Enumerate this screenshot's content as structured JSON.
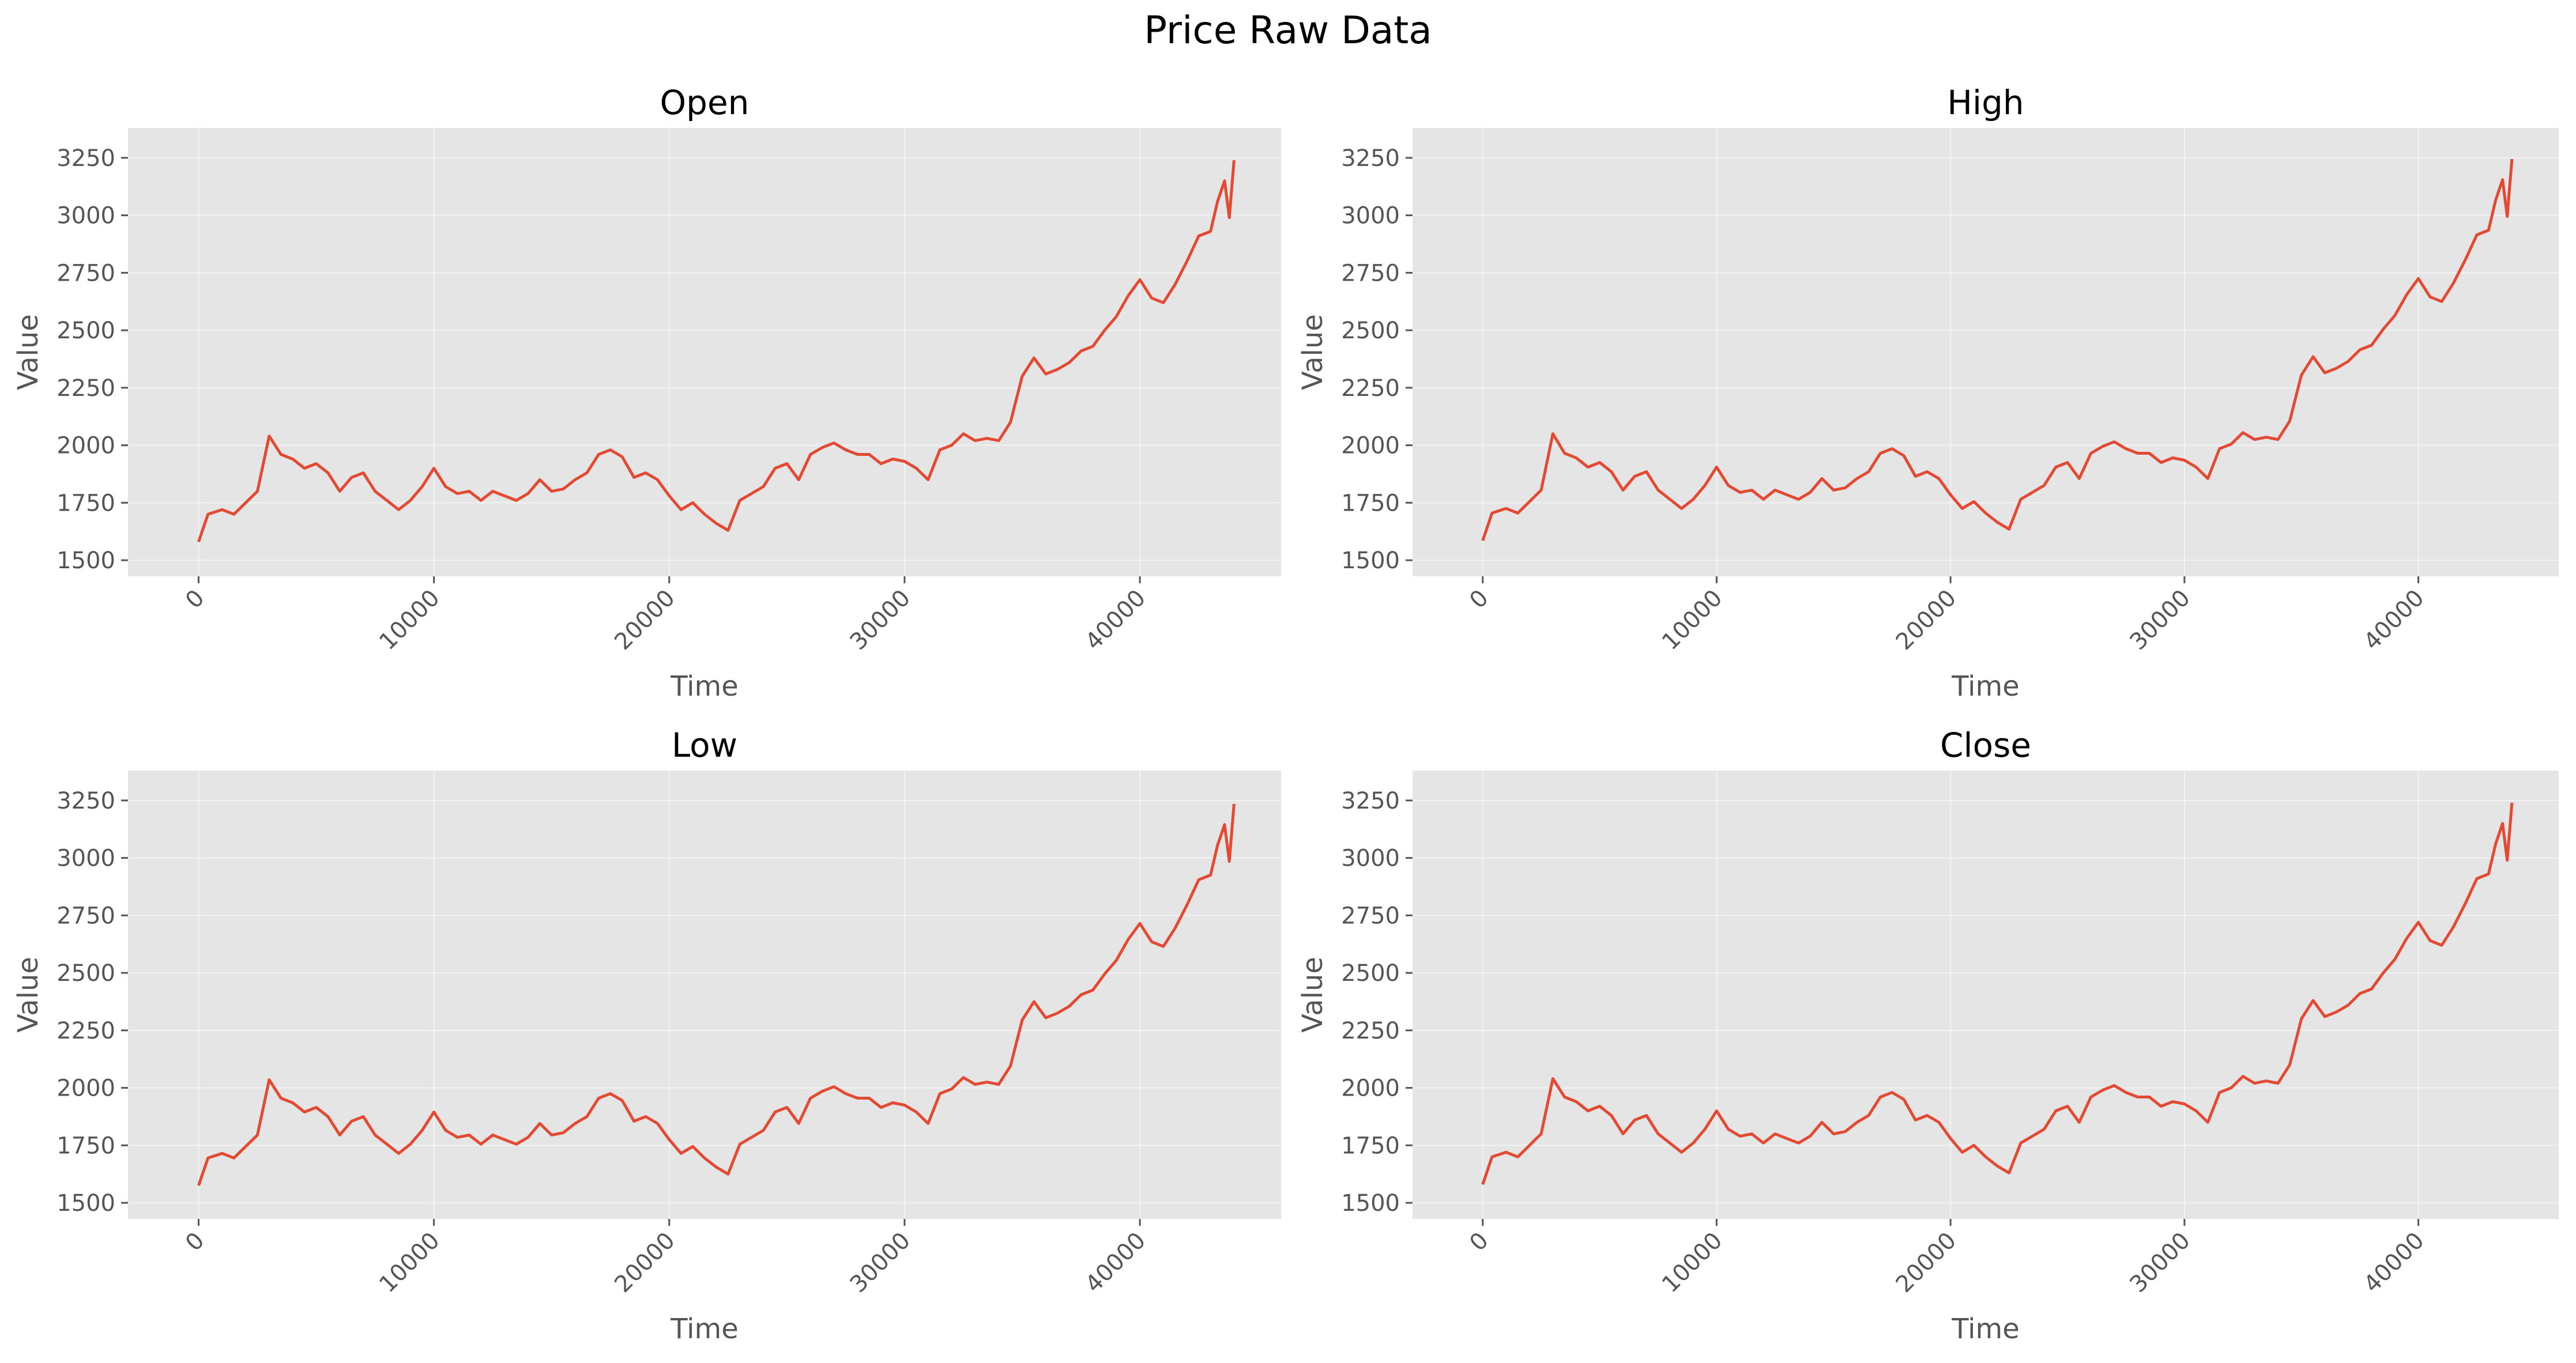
{
  "figure": {
    "title": "Price Raw Data"
  },
  "style": {
    "plot_background": "#e5e5e5",
    "grid_color": "#ffffff",
    "line_color": "#e24a33",
    "tick_color": "#555555"
  },
  "chart_data": [
    {
      "type": "line",
      "title": "Open",
      "xlabel": "Time",
      "ylabel": "Value",
      "xlim": [
        -3000,
        46000
      ],
      "ylim": [
        1430,
        3380
      ],
      "xticks": [
        0,
        10000,
        20000,
        30000,
        40000
      ],
      "xtick_labels": [
        "0",
        "10000",
        "20000",
        "30000",
        "40000"
      ],
      "yticks": [
        1500,
        1750,
        2000,
        2250,
        2500,
        2750,
        3000,
        3250
      ],
      "ytick_labels": [
        "1500",
        "1750",
        "2000",
        "2250",
        "2500",
        "2750",
        "3000",
        "3250"
      ],
      "grid": true,
      "series": [
        {
          "x": [
            0,
            400,
            1000,
            1500,
            2000,
            2500,
            3000,
            3500,
            4000,
            4500,
            5000,
            5500,
            6000,
            6500,
            7000,
            7500,
            8000,
            8500,
            9000,
            9500,
            10000,
            10500,
            11000,
            11500,
            12000,
            12500,
            13000,
            13500,
            14000,
            14500,
            15000,
            15500,
            16000,
            16500,
            17000,
            17500,
            18000,
            18500,
            19000,
            19500,
            20000,
            20500,
            21000,
            21500,
            22000,
            22500,
            23000,
            23500,
            24000,
            24500,
            25000,
            25500,
            26000,
            26500,
            27000,
            27500,
            28000,
            28500,
            29000,
            29500,
            30000,
            30500,
            31000,
            31500,
            32000,
            32500,
            33000,
            33500,
            34000,
            34500,
            35000,
            35500,
            36000,
            36500,
            37000,
            37500,
            38000,
            38500,
            39000,
            39500,
            40000,
            40500,
            41000,
            41500,
            42000,
            42500,
            43000,
            43300,
            43600,
            43800,
            44000
          ],
          "y": [
            1580,
            1700,
            1720,
            1700,
            1750,
            1800,
            2040,
            1960,
            1940,
            1900,
            1920,
            1880,
            1800,
            1860,
            1880,
            1800,
            1760,
            1720,
            1760,
            1820,
            1900,
            1820,
            1790,
            1800,
            1760,
            1800,
            1780,
            1760,
            1790,
            1850,
            1800,
            1810,
            1850,
            1880,
            1960,
            1980,
            1950,
            1860,
            1880,
            1850,
            1780,
            1720,
            1750,
            1700,
            1660,
            1630,
            1760,
            1790,
            1820,
            1900,
            1920,
            1850,
            1960,
            1990,
            2010,
            1980,
            1960,
            1960,
            1920,
            1940,
            1930,
            1900,
            1850,
            1980,
            2000,
            2050,
            2020,
            2030,
            2020,
            2100,
            2300,
            2380,
            2310,
            2330,
            2360,
            2410,
            2430,
            2500,
            2560,
            2650,
            2720,
            2640,
            2620,
            2700,
            2800,
            2910,
            2930,
            3060,
            3150,
            2990,
            3240
          ]
        }
      ]
    },
    {
      "type": "line",
      "title": "High",
      "xlabel": "Time",
      "ylabel": "Value",
      "xlim": [
        -3000,
        46000
      ],
      "ylim": [
        1430,
        3380
      ],
      "xticks": [
        0,
        10000,
        20000,
        30000,
        40000
      ],
      "xtick_labels": [
        "0",
        "10000",
        "20000",
        "30000",
        "40000"
      ],
      "yticks": [
        1500,
        1750,
        2000,
        2250,
        2500,
        2750,
        3000,
        3250
      ],
      "ytick_labels": [
        "1500",
        "1750",
        "2000",
        "2250",
        "2500",
        "2750",
        "3000",
        "3250"
      ],
      "grid": true,
      "series": [
        {
          "x": [
            0,
            400,
            1000,
            1500,
            2000,
            2500,
            3000,
            3500,
            4000,
            4500,
            5000,
            5500,
            6000,
            6500,
            7000,
            7500,
            8000,
            8500,
            9000,
            9500,
            10000,
            10500,
            11000,
            11500,
            12000,
            12500,
            13000,
            13500,
            14000,
            14500,
            15000,
            15500,
            16000,
            16500,
            17000,
            17500,
            18000,
            18500,
            19000,
            19500,
            20000,
            20500,
            21000,
            21500,
            22000,
            22500,
            23000,
            23500,
            24000,
            24500,
            25000,
            25500,
            26000,
            26500,
            27000,
            27500,
            28000,
            28500,
            29000,
            29500,
            30000,
            30500,
            31000,
            31500,
            32000,
            32500,
            33000,
            33500,
            34000,
            34500,
            35000,
            35500,
            36000,
            36500,
            37000,
            37500,
            38000,
            38500,
            39000,
            39500,
            40000,
            40500,
            41000,
            41500,
            42000,
            42500,
            43000,
            43300,
            43600,
            43800,
            44000
          ],
          "y": [
            1585,
            1705,
            1725,
            1705,
            1755,
            1805,
            2050,
            1965,
            1945,
            1905,
            1925,
            1885,
            1805,
            1865,
            1885,
            1805,
            1765,
            1725,
            1765,
            1825,
            1905,
            1825,
            1795,
            1805,
            1765,
            1805,
            1785,
            1765,
            1795,
            1855,
            1805,
            1815,
            1855,
            1885,
            1965,
            1985,
            1955,
            1865,
            1885,
            1855,
            1785,
            1725,
            1755,
            1705,
            1665,
            1635,
            1765,
            1795,
            1825,
            1905,
            1925,
            1855,
            1965,
            1995,
            2015,
            1985,
            1965,
            1965,
            1925,
            1945,
            1935,
            1905,
            1855,
            1985,
            2005,
            2055,
            2025,
            2035,
            2025,
            2105,
            2305,
            2385,
            2315,
            2335,
            2365,
            2415,
            2435,
            2505,
            2565,
            2655,
            2725,
            2645,
            2625,
            2705,
            2805,
            2915,
            2935,
            3065,
            3155,
            2995,
            3245
          ]
        }
      ]
    },
    {
      "type": "line",
      "title": "Low",
      "xlabel": "Time",
      "ylabel": "Value",
      "xlim": [
        -3000,
        46000
      ],
      "ylim": [
        1430,
        3380
      ],
      "xticks": [
        0,
        10000,
        20000,
        30000,
        40000
      ],
      "xtick_labels": [
        "0",
        "10000",
        "20000",
        "30000",
        "40000"
      ],
      "yticks": [
        1500,
        1750,
        2000,
        2250,
        2500,
        2750,
        3000,
        3250
      ],
      "ytick_labels": [
        "1500",
        "1750",
        "2000",
        "2250",
        "2500",
        "2750",
        "3000",
        "3250"
      ],
      "grid": true,
      "series": [
        {
          "x": [
            0,
            400,
            1000,
            1500,
            2000,
            2500,
            3000,
            3500,
            4000,
            4500,
            5000,
            5500,
            6000,
            6500,
            7000,
            7500,
            8000,
            8500,
            9000,
            9500,
            10000,
            10500,
            11000,
            11500,
            12000,
            12500,
            13000,
            13500,
            14000,
            14500,
            15000,
            15500,
            16000,
            16500,
            17000,
            17500,
            18000,
            18500,
            19000,
            19500,
            20000,
            20500,
            21000,
            21500,
            22000,
            22500,
            23000,
            23500,
            24000,
            24500,
            25000,
            25500,
            26000,
            26500,
            27000,
            27500,
            28000,
            28500,
            29000,
            29500,
            30000,
            30500,
            31000,
            31500,
            32000,
            32500,
            33000,
            33500,
            34000,
            34500,
            35000,
            35500,
            36000,
            36500,
            37000,
            37500,
            38000,
            38500,
            39000,
            39500,
            40000,
            40500,
            41000,
            41500,
            42000,
            42500,
            43000,
            43300,
            43600,
            43800,
            44000
          ],
          "y": [
            1575,
            1695,
            1715,
            1695,
            1745,
            1795,
            2035,
            1955,
            1935,
            1895,
            1915,
            1875,
            1795,
            1855,
            1875,
            1795,
            1755,
            1715,
            1755,
            1815,
            1895,
            1815,
            1785,
            1795,
            1755,
            1795,
            1775,
            1755,
            1785,
            1845,
            1795,
            1805,
            1845,
            1875,
            1955,
            1975,
            1945,
            1855,
            1875,
            1845,
            1775,
            1715,
            1745,
            1695,
            1655,
            1625,
            1755,
            1785,
            1815,
            1895,
            1915,
            1845,
            1955,
            1985,
            2005,
            1975,
            1955,
            1955,
            1915,
            1935,
            1925,
            1895,
            1845,
            1975,
            1995,
            2045,
            2015,
            2025,
            2015,
            2095,
            2295,
            2375,
            2305,
            2325,
            2355,
            2405,
            2425,
            2495,
            2555,
            2645,
            2715,
            2635,
            2615,
            2695,
            2795,
            2905,
            2925,
            3055,
            3145,
            2985,
            3235
          ]
        }
      ]
    },
    {
      "type": "line",
      "title": "Close",
      "xlabel": "Time",
      "ylabel": "Value",
      "xlim": [
        -3000,
        46000
      ],
      "ylim": [
        1430,
        3380
      ],
      "xticks": [
        0,
        10000,
        20000,
        30000,
        40000
      ],
      "xtick_labels": [
        "0",
        "10000",
        "20000",
        "30000",
        "40000"
      ],
      "yticks": [
        1500,
        1750,
        2000,
        2250,
        2500,
        2750,
        3000,
        3250
      ],
      "ytick_labels": [
        "1500",
        "1750",
        "2000",
        "2250",
        "2500",
        "2750",
        "3000",
        "3250"
      ],
      "grid": true,
      "series": [
        {
          "x": [
            0,
            400,
            1000,
            1500,
            2000,
            2500,
            3000,
            3500,
            4000,
            4500,
            5000,
            5500,
            6000,
            6500,
            7000,
            7500,
            8000,
            8500,
            9000,
            9500,
            10000,
            10500,
            11000,
            11500,
            12000,
            12500,
            13000,
            13500,
            14000,
            14500,
            15000,
            15500,
            16000,
            16500,
            17000,
            17500,
            18000,
            18500,
            19000,
            19500,
            20000,
            20500,
            21000,
            21500,
            22000,
            22500,
            23000,
            23500,
            24000,
            24500,
            25000,
            25500,
            26000,
            26500,
            27000,
            27500,
            28000,
            28500,
            29000,
            29500,
            30000,
            30500,
            31000,
            31500,
            32000,
            32500,
            33000,
            33500,
            34000,
            34500,
            35000,
            35500,
            36000,
            36500,
            37000,
            37500,
            38000,
            38500,
            39000,
            39500,
            40000,
            40500,
            41000,
            41500,
            42000,
            42500,
            43000,
            43300,
            43600,
            43800,
            44000
          ],
          "y": [
            1580,
            1700,
            1720,
            1700,
            1750,
            1800,
            2040,
            1960,
            1940,
            1900,
            1920,
            1880,
            1800,
            1860,
            1880,
            1800,
            1760,
            1720,
            1760,
            1820,
            1900,
            1820,
            1790,
            1800,
            1760,
            1800,
            1780,
            1760,
            1790,
            1850,
            1800,
            1810,
            1850,
            1880,
            1960,
            1980,
            1950,
            1860,
            1880,
            1850,
            1780,
            1720,
            1750,
            1700,
            1660,
            1630,
            1760,
            1790,
            1820,
            1900,
            1920,
            1850,
            1960,
            1990,
            2010,
            1980,
            1960,
            1960,
            1920,
            1940,
            1930,
            1900,
            1850,
            1980,
            2000,
            2050,
            2020,
            2030,
            2020,
            2100,
            2300,
            2380,
            2310,
            2330,
            2360,
            2410,
            2430,
            2500,
            2560,
            2650,
            2720,
            2640,
            2620,
            2700,
            2800,
            2910,
            2930,
            3060,
            3150,
            2990,
            3240
          ]
        }
      ]
    }
  ]
}
